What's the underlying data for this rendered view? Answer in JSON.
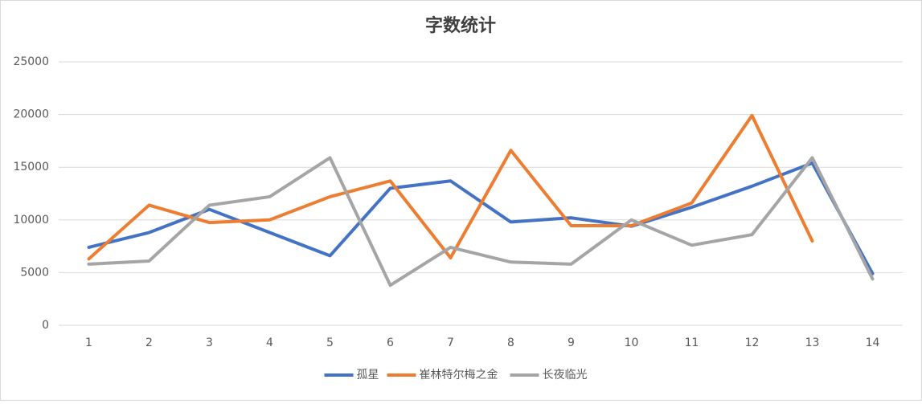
{
  "chart_data": {
    "type": "line",
    "title": "字数统计",
    "categories": [
      "1",
      "2",
      "3",
      "4",
      "5",
      "6",
      "7",
      "8",
      "9",
      "10",
      "11",
      "12",
      "13",
      "14"
    ],
    "series": [
      {
        "name": "孤星",
        "color": "#4472c4",
        "values": [
          7400,
          8800,
          11000,
          8800,
          6600,
          13000,
          13700,
          9800,
          10200,
          9400,
          11200,
          13200,
          15400,
          4900
        ]
      },
      {
        "name": "崔林特尔梅之金",
        "color": "#ed7d31",
        "values": [
          6300,
          11400,
          9750,
          10000,
          12200,
          13700,
          6400,
          16600,
          9450,
          9450,
          11600,
          19900,
          8000,
          null
        ]
      },
      {
        "name": "长夜临光",
        "color": "#a5a5a5",
        "values": [
          5800,
          6100,
          11400,
          12200,
          15900,
          3800,
          7400,
          6000,
          5800,
          10000,
          7600,
          8600,
          15900,
          4400
        ]
      }
    ],
    "ylim": [
      0,
      25000
    ],
    "yticks": [
      0,
      5000,
      10000,
      15000,
      20000,
      25000
    ],
    "grid": true,
    "legend": "bottom"
  }
}
